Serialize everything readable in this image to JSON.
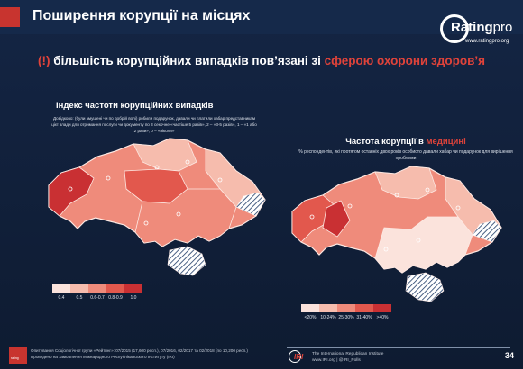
{
  "header": {
    "title": "Поширення корупції на місцях"
  },
  "logo": {
    "brand_bold": "Rating",
    "brand_light": "pro",
    "url": "www.ratingpro.org"
  },
  "headline": {
    "prefix": "(!) ",
    "middle": "більшість корупційних випадків пов’язані зі ",
    "highlight": "сферою охорони здоров’я"
  },
  "chart_data": [
    {
      "type": "choropleth",
      "title": "Індекс частоти корупційних випадків",
      "description": "Довідково: (були змушені чи по добрій волі) робили подарунок, давали чи платили хабар представникам цієї влади для отримання послуги чи документу по 3 секочне «частіше 5 разів», 2 – «3-5 разів», 1 – «1 або 2 рази», 0 – «ніколи»",
      "legend": [
        {
          "label": "0.4",
          "color": "#fbe3dc"
        },
        {
          "label": "0.5",
          "color": "#f6bcad"
        },
        {
          "label": "0.6-0.7",
          "color": "#ef8b7b"
        },
        {
          "label": "0.8-0.9",
          "color": "#e2584d"
        },
        {
          "label": "1.0",
          "color": "#c93033"
        }
      ]
    },
    {
      "type": "choropleth",
      "title_prefix": "Частота корупції в ",
      "title_highlight": "медицині",
      "subtitle": "% респондентів, які протягом останніх двох років особисто давали хабар чи подарунок для вирішення проблеми",
      "legend": [
        {
          "label": "<20%",
          "color": "#fbe3dc"
        },
        {
          "label": "10-24%",
          "color": "#f6bcad"
        },
        {
          "label": "25-30%",
          "color": "#ef8b7b"
        },
        {
          "label": "31-40%",
          "color": "#e2584d"
        },
        {
          "label": ">40%",
          "color": "#c93033"
        }
      ]
    }
  ],
  "footer": {
    "left_line1": "Опитування Соціологічної групи «Рейтинг»: 07/2015 (17,600 респ.), 07/2016, 02/2017 та 02/2018 (по 10,200 респ.)",
    "left_line2": "Проведено на замовлення Міжнародного Республіканського Інституту (IRI)",
    "redlogo_text": "rating",
    "iri_logo": "IRI",
    "iri_line1": "The International Republican Institute",
    "iri_line2": "www.IRI.org | @IRI_Polls",
    "page": "34"
  }
}
